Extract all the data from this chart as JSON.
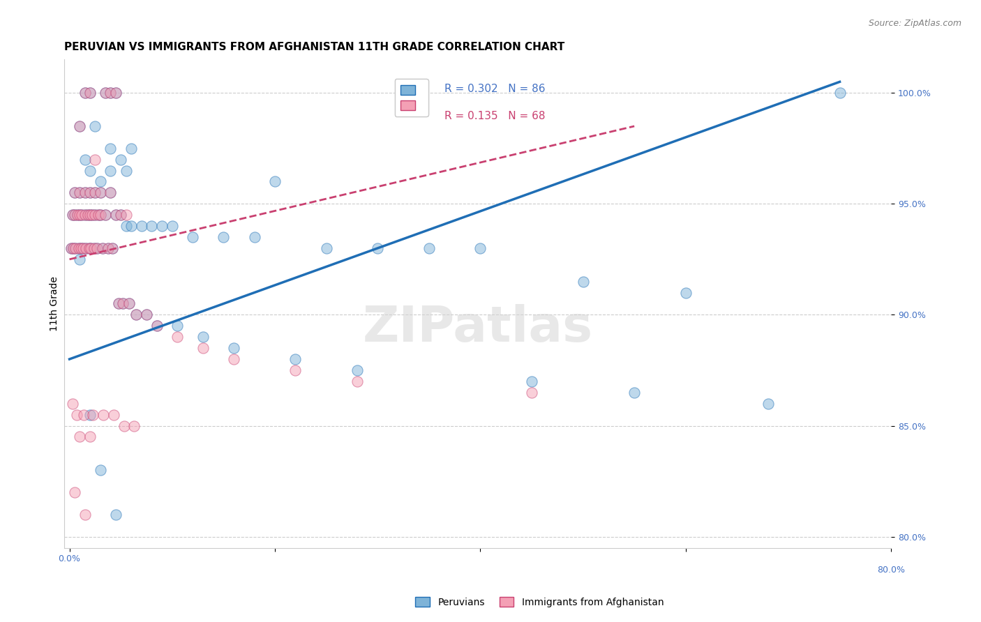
{
  "title": "PERUVIAN VS IMMIGRANTS FROM AFGHANISTAN 11TH GRADE CORRELATION CHART",
  "source_text": "Source: ZipAtlas.com",
  "xlabel": "",
  "ylabel": "11th Grade",
  "watermark": "ZIPatlas",
  "legend_blue_r": "R = 0.302",
  "legend_blue_n": "N = 86",
  "legend_pink_r": "R = 0.135",
  "legend_pink_n": "N = 68",
  "legend_blue_label": "Peruvians",
  "legend_pink_label": "Immigrants from Afghanistan",
  "xlim": [
    -0.5,
    80.0
  ],
  "ylim": [
    79.5,
    101.5
  ],
  "xticks": [
    0.0,
    20.0,
    40.0,
    60.0,
    80.0
  ],
  "xtick_labels": [
    "0.0%",
    "",
    "",
    "",
    "80.0%"
  ],
  "ytick_labels": [
    "80.0%",
    "85.0%",
    "90.0%",
    "95.0%",
    "100.0%"
  ],
  "yticks": [
    80.0,
    85.0,
    90.0,
    95.0,
    100.0
  ],
  "blue_color": "#7eb3d8",
  "pink_color": "#f4a0b5",
  "blue_line_color": "#1f6eb5",
  "pink_line_color": "#c94070",
  "grid_color": "#cccccc",
  "axis_label_color": "#4472c4",
  "blue_scatter_x": [
    1.5,
    2.0,
    3.5,
    4.0,
    4.5,
    1.0,
    2.5,
    4.0,
    5.0,
    6.0,
    1.5,
    2.0,
    3.0,
    4.0,
    5.5,
    0.5,
    1.0,
    1.5,
    2.0,
    2.5,
    3.0,
    4.0,
    0.3,
    0.5,
    0.8,
    1.0,
    1.2,
    1.5,
    1.8,
    2.0,
    2.2,
    2.5,
    2.8,
    3.0,
    3.5,
    4.5,
    5.0,
    5.5,
    6.0,
    7.0,
    8.0,
    9.0,
    10.0,
    12.0,
    15.0,
    18.0,
    20.0,
    25.0,
    30.0,
    35.0,
    40.0,
    50.0,
    60.0,
    75.0,
    0.2,
    0.4,
    0.6,
    0.9,
    1.1,
    1.3,
    1.6,
    1.9,
    2.1,
    2.4,
    2.7,
    3.2,
    3.8,
    4.2,
    4.8,
    5.2,
    5.8,
    6.5,
    7.5,
    8.5,
    10.5,
    13.0,
    16.0,
    22.0,
    28.0,
    45.0,
    55.0,
    68.0,
    1.0,
    2.0,
    3.0,
    4.5
  ],
  "blue_scatter_y": [
    100.0,
    100.0,
    100.0,
    100.0,
    100.0,
    98.5,
    98.5,
    97.5,
    97.0,
    97.5,
    97.0,
    96.5,
    96.0,
    96.5,
    96.5,
    95.5,
    95.5,
    95.5,
    95.5,
    95.5,
    95.5,
    95.5,
    94.5,
    94.5,
    94.5,
    94.5,
    94.5,
    94.5,
    94.5,
    94.5,
    94.5,
    94.5,
    94.5,
    94.5,
    94.5,
    94.5,
    94.5,
    94.0,
    94.0,
    94.0,
    94.0,
    94.0,
    94.0,
    93.5,
    93.5,
    93.5,
    96.0,
    93.0,
    93.0,
    93.0,
    93.0,
    91.5,
    91.0,
    100.0,
    93.0,
    93.0,
    93.0,
    93.0,
    93.0,
    93.0,
    93.0,
    93.0,
    93.0,
    93.0,
    93.0,
    93.0,
    93.0,
    93.0,
    90.5,
    90.5,
    90.5,
    90.0,
    90.0,
    89.5,
    89.5,
    89.0,
    88.5,
    88.0,
    87.5,
    87.0,
    86.5,
    86.0,
    92.5,
    85.5,
    83.0,
    81.0
  ],
  "pink_scatter_x": [
    1.5,
    2.0,
    3.5,
    4.0,
    4.5,
    1.0,
    2.5,
    0.5,
    1.0,
    1.5,
    2.0,
    2.5,
    3.0,
    4.0,
    0.3,
    0.5,
    0.8,
    1.0,
    1.2,
    1.5,
    1.8,
    2.0,
    2.2,
    2.5,
    2.8,
    3.0,
    3.5,
    4.5,
    5.0,
    5.5,
    0.2,
    0.4,
    0.6,
    0.9,
    1.1,
    1.3,
    1.6,
    1.9,
    2.1,
    2.4,
    2.7,
    3.2,
    3.8,
    4.2,
    4.8,
    5.2,
    5.8,
    6.5,
    7.5,
    8.5,
    10.5,
    13.0,
    16.0,
    22.0,
    28.0,
    45.0,
    0.3,
    0.7,
    1.4,
    2.3,
    3.3,
    4.3,
    5.3,
    6.3,
    1.0,
    2.0,
    0.5,
    1.5
  ],
  "pink_scatter_y": [
    100.0,
    100.0,
    100.0,
    100.0,
    100.0,
    98.5,
    97.0,
    95.5,
    95.5,
    95.5,
    95.5,
    95.5,
    95.5,
    95.5,
    94.5,
    94.5,
    94.5,
    94.5,
    94.5,
    94.5,
    94.5,
    94.5,
    94.5,
    94.5,
    94.5,
    94.5,
    94.5,
    94.5,
    94.5,
    94.5,
    93.0,
    93.0,
    93.0,
    93.0,
    93.0,
    93.0,
    93.0,
    93.0,
    93.0,
    93.0,
    93.0,
    93.0,
    93.0,
    93.0,
    90.5,
    90.5,
    90.5,
    90.0,
    90.0,
    89.5,
    89.0,
    88.5,
    88.0,
    87.5,
    87.0,
    86.5,
    86.0,
    85.5,
    85.5,
    85.5,
    85.5,
    85.5,
    85.0,
    85.0,
    84.5,
    84.5,
    82.0,
    81.0
  ],
  "blue_line_x": [
    0.0,
    75.0
  ],
  "blue_line_y": [
    88.0,
    100.5
  ],
  "pink_line_x": [
    0.0,
    55.0
  ],
  "pink_line_y": [
    92.5,
    98.5
  ],
  "title_fontsize": 11,
  "axis_fontsize": 10,
  "tick_fontsize": 9,
  "marker_size": 120,
  "marker_alpha": 0.5,
  "background_color": "#ffffff"
}
